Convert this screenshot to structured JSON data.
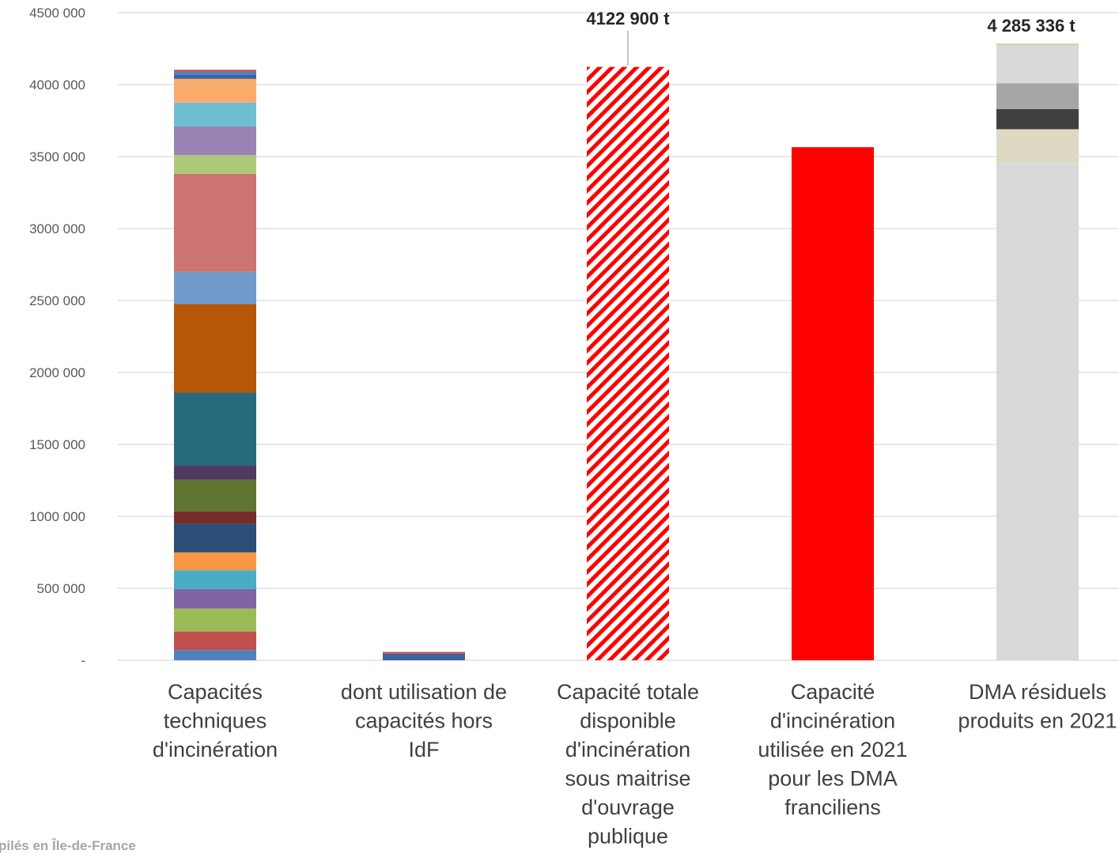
{
  "chart_data": {
    "type": "bar",
    "stacked": true,
    "ylim": [
      0,
      4500000
    ],
    "y_ticks": [
      {
        "value": 0,
        "label": "-"
      },
      {
        "value": 500000,
        "label": "500 000"
      },
      {
        "value": 1000000,
        "label": "1000 000"
      },
      {
        "value": 1500000,
        "label": "1500 000"
      },
      {
        "value": 2000000,
        "label": "2000 000"
      },
      {
        "value": 2500000,
        "label": "2500 000"
      },
      {
        "value": 3000000,
        "label": "3000 000"
      },
      {
        "value": 3500000,
        "label": "3500 000"
      },
      {
        "value": 4000000,
        "label": "4000 000"
      },
      {
        "value": 4500000,
        "label": "4500 000"
      }
    ],
    "grid": true,
    "legend": "none",
    "categories": [
      {
        "label": [
          "Capacités",
          "techniques",
          "d'incinération"
        ],
        "segments": [
          {
            "value": 70000,
            "color": "#4f81bd"
          },
          {
            "value": 130000,
            "color": "#c0504d"
          },
          {
            "value": 160000,
            "color": "#9bbb59"
          },
          {
            "value": 135000,
            "color": "#8064a2"
          },
          {
            "value": 130000,
            "color": "#4bacc6"
          },
          {
            "value": 125000,
            "color": "#f79646"
          },
          {
            "value": 200000,
            "color": "#2c4d75"
          },
          {
            "value": 85000,
            "color": "#772c2a"
          },
          {
            "value": 220000,
            "color": "#5f7530"
          },
          {
            "value": 100000,
            "color": "#4d3b62"
          },
          {
            "value": 505000,
            "color": "#276a7c"
          },
          {
            "value": 615000,
            "color": "#b65708"
          },
          {
            "value": 225000,
            "color": "#729aca"
          },
          {
            "value": 680000,
            "color": "#cd7371"
          },
          {
            "value": 130000,
            "color": "#afc97a"
          },
          {
            "value": 200000,
            "color": "#9983b5"
          },
          {
            "value": 165000,
            "color": "#6fbdd1"
          },
          {
            "value": 165000,
            "color": "#f9ab6b"
          },
          {
            "value": 30000,
            "color": "#3a64a0"
          },
          {
            "value": 20000,
            "color": "#4f81bd"
          },
          {
            "value": 12900,
            "color": "#c0504d"
          }
        ]
      },
      {
        "label": [
          "dont utilisation de",
          "capacités hors",
          "IdF"
        ],
        "segments": [
          {
            "value": 45000,
            "color": "#3a64a0"
          },
          {
            "value": 13000,
            "color": "#c0504d"
          }
        ]
      },
      {
        "label": [
          "Capacité totale",
          "disponible",
          "d'incinération",
          "sous maitrise",
          "d'ouvrage",
          "publique"
        ],
        "segments": [
          {
            "value": 4122900,
            "color": "#ff0000",
            "pattern": "hatched"
          }
        ],
        "total_label": "4122 900 t"
      },
      {
        "label": [
          "Capacité",
          "d'incinération",
          "utilisée en 2021",
          "pour les DMA",
          "franciliens"
        ],
        "segments": [
          {
            "value": 3565000,
            "color": "#ff0000"
          }
        ]
      },
      {
        "label": [
          "DMA résiduels",
          "produits en 2021"
        ],
        "segments": [
          {
            "value": 3455000,
            "color": "#d9d9d9"
          },
          {
            "value": 235000,
            "color": "#ddd9c3"
          },
          {
            "value": 140000,
            "color": "#404040"
          },
          {
            "value": 180000,
            "color": "#a6a6a6"
          },
          {
            "value": 265000,
            "color": "#d9d9d9"
          },
          {
            "value": 10336,
            "color": "#c4d79b"
          }
        ],
        "total_label": "4 285 336 t"
      }
    ]
  },
  "footer": {
    "note": "pilés en Île-de-France"
  }
}
